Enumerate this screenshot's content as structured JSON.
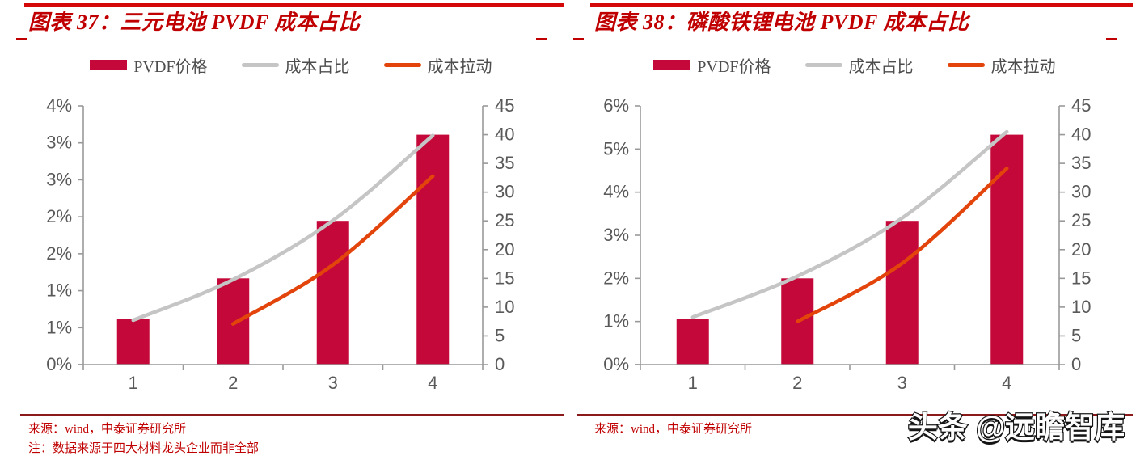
{
  "watermark": {
    "text": "头条 @远瞻智库"
  },
  "colors": {
    "top_rule": "#D40808",
    "title": "#C00000",
    "bar": "#C40839",
    "gray_line": "#C5C5C5",
    "orange_line": "#E2440B",
    "axis": "#999999",
    "tick_text": "#595959",
    "legend_text": "#4D4D4D",
    "separator": "#8B1A1A",
    "source_text": "#C00000",
    "watermark_fill": "#FDFDFD",
    "watermark_stroke": "#151515"
  },
  "chart_data": [
    {
      "id": "figure-37",
      "type": "bar",
      "title": "图表 37：三元电池 PVDF 成本占比",
      "categories": [
        "1",
        "2",
        "3",
        "4"
      ],
      "series": [
        {
          "name": "PVDF价格",
          "kind": "bar",
          "axis": "right",
          "color_key": "bar",
          "values": [
            8,
            15,
            25,
            40
          ]
        },
        {
          "name": "成本占比",
          "kind": "line",
          "axis": "left",
          "color_key": "gray_line",
          "unit": "%",
          "values": [
            0.6,
            1.15,
            1.95,
            3.1
          ]
        },
        {
          "name": "成本拉动",
          "kind": "line",
          "axis": "left",
          "color_key": "orange_line",
          "unit": "%",
          "values": [
            null,
            0.55,
            1.35,
            2.55
          ]
        }
      ],
      "left_axis": {
        "min": 0,
        "max": 3.5,
        "step": 0.5,
        "tick_labels_top_to_bottom": [
          "4%",
          "3%",
          "3%",
          "2%",
          "2%",
          "1%",
          "1%",
          "0%"
        ]
      },
      "right_axis": {
        "min": 0,
        "max": 45,
        "step": 5,
        "tick_labels_top_to_bottom": [
          "45",
          "40",
          "35",
          "30",
          "25",
          "20",
          "15",
          "10",
          "5",
          "0"
        ]
      },
      "legend_position": "top",
      "grid": false,
      "source": "来源：wind，中泰证券研究所",
      "note": "注：数据来源于四大材料龙头企业而非全部"
    },
    {
      "id": "figure-38",
      "type": "bar",
      "title": "图表 38：磷酸铁锂电池 PVDF 成本占比",
      "categories": [
        "1",
        "2",
        "3",
        "4"
      ],
      "series": [
        {
          "name": "PVDF价格",
          "kind": "bar",
          "axis": "right",
          "color_key": "bar",
          "values": [
            8,
            15,
            25,
            40
          ]
        },
        {
          "name": "成本占比",
          "kind": "line",
          "axis": "left",
          "color_key": "gray_line",
          "unit": "%",
          "values": [
            1.1,
            2.05,
            3.4,
            5.4
          ]
        },
        {
          "name": "成本拉动",
          "kind": "line",
          "axis": "left",
          "color_key": "orange_line",
          "unit": "%",
          "values": [
            null,
            1.0,
            2.35,
            4.55
          ]
        }
      ],
      "left_axis": {
        "min": 0,
        "max": 6,
        "step": 1,
        "tick_labels_top_to_bottom": [
          "6%",
          "5%",
          "4%",
          "3%",
          "2%",
          "1%",
          "0%"
        ]
      },
      "right_axis": {
        "min": 0,
        "max": 45,
        "step": 5,
        "tick_labels_top_to_bottom": [
          "45",
          "40",
          "35",
          "30",
          "25",
          "20",
          "15",
          "10",
          "5",
          "0"
        ]
      },
      "legend_position": "top",
      "grid": false,
      "source": "来源：wind，中泰证券研究所"
    }
  ]
}
